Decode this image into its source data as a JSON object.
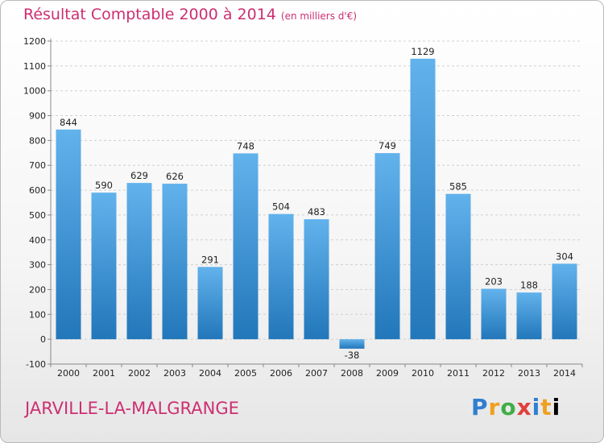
{
  "title": "Résultat Comptable 2000 à 2014",
  "subtitle": "(en milliers d'€)",
  "place": "JARVILLE-LA-MALGRANGE",
  "logo": [
    "P",
    "r",
    "o",
    "x",
    "i",
    "t",
    "i"
  ],
  "colors": {
    "bar_light": "#62b2ec",
    "bar_dark": "#2277ba",
    "title": "#cc2f72",
    "grid": "#d0d0d0"
  },
  "chart_data": {
    "type": "bar",
    "categories": [
      "2000",
      "2001",
      "2002",
      "2003",
      "2004",
      "2005",
      "2006",
      "2007",
      "2008",
      "2009",
      "2010",
      "2011",
      "2012",
      "2013",
      "2014"
    ],
    "values": [
      844,
      590,
      629,
      626,
      291,
      748,
      504,
      483,
      -38,
      749,
      1129,
      585,
      203,
      188,
      304
    ],
    "ylim": [
      -100,
      1200
    ],
    "yticks": [
      "-100",
      "0",
      "100",
      "200",
      "300",
      "400",
      "500",
      "600",
      "700",
      "800",
      "900",
      "1000",
      "1100",
      "1200"
    ],
    "grid": "horizontal-dashed",
    "xlabel": "",
    "ylabel": ""
  }
}
